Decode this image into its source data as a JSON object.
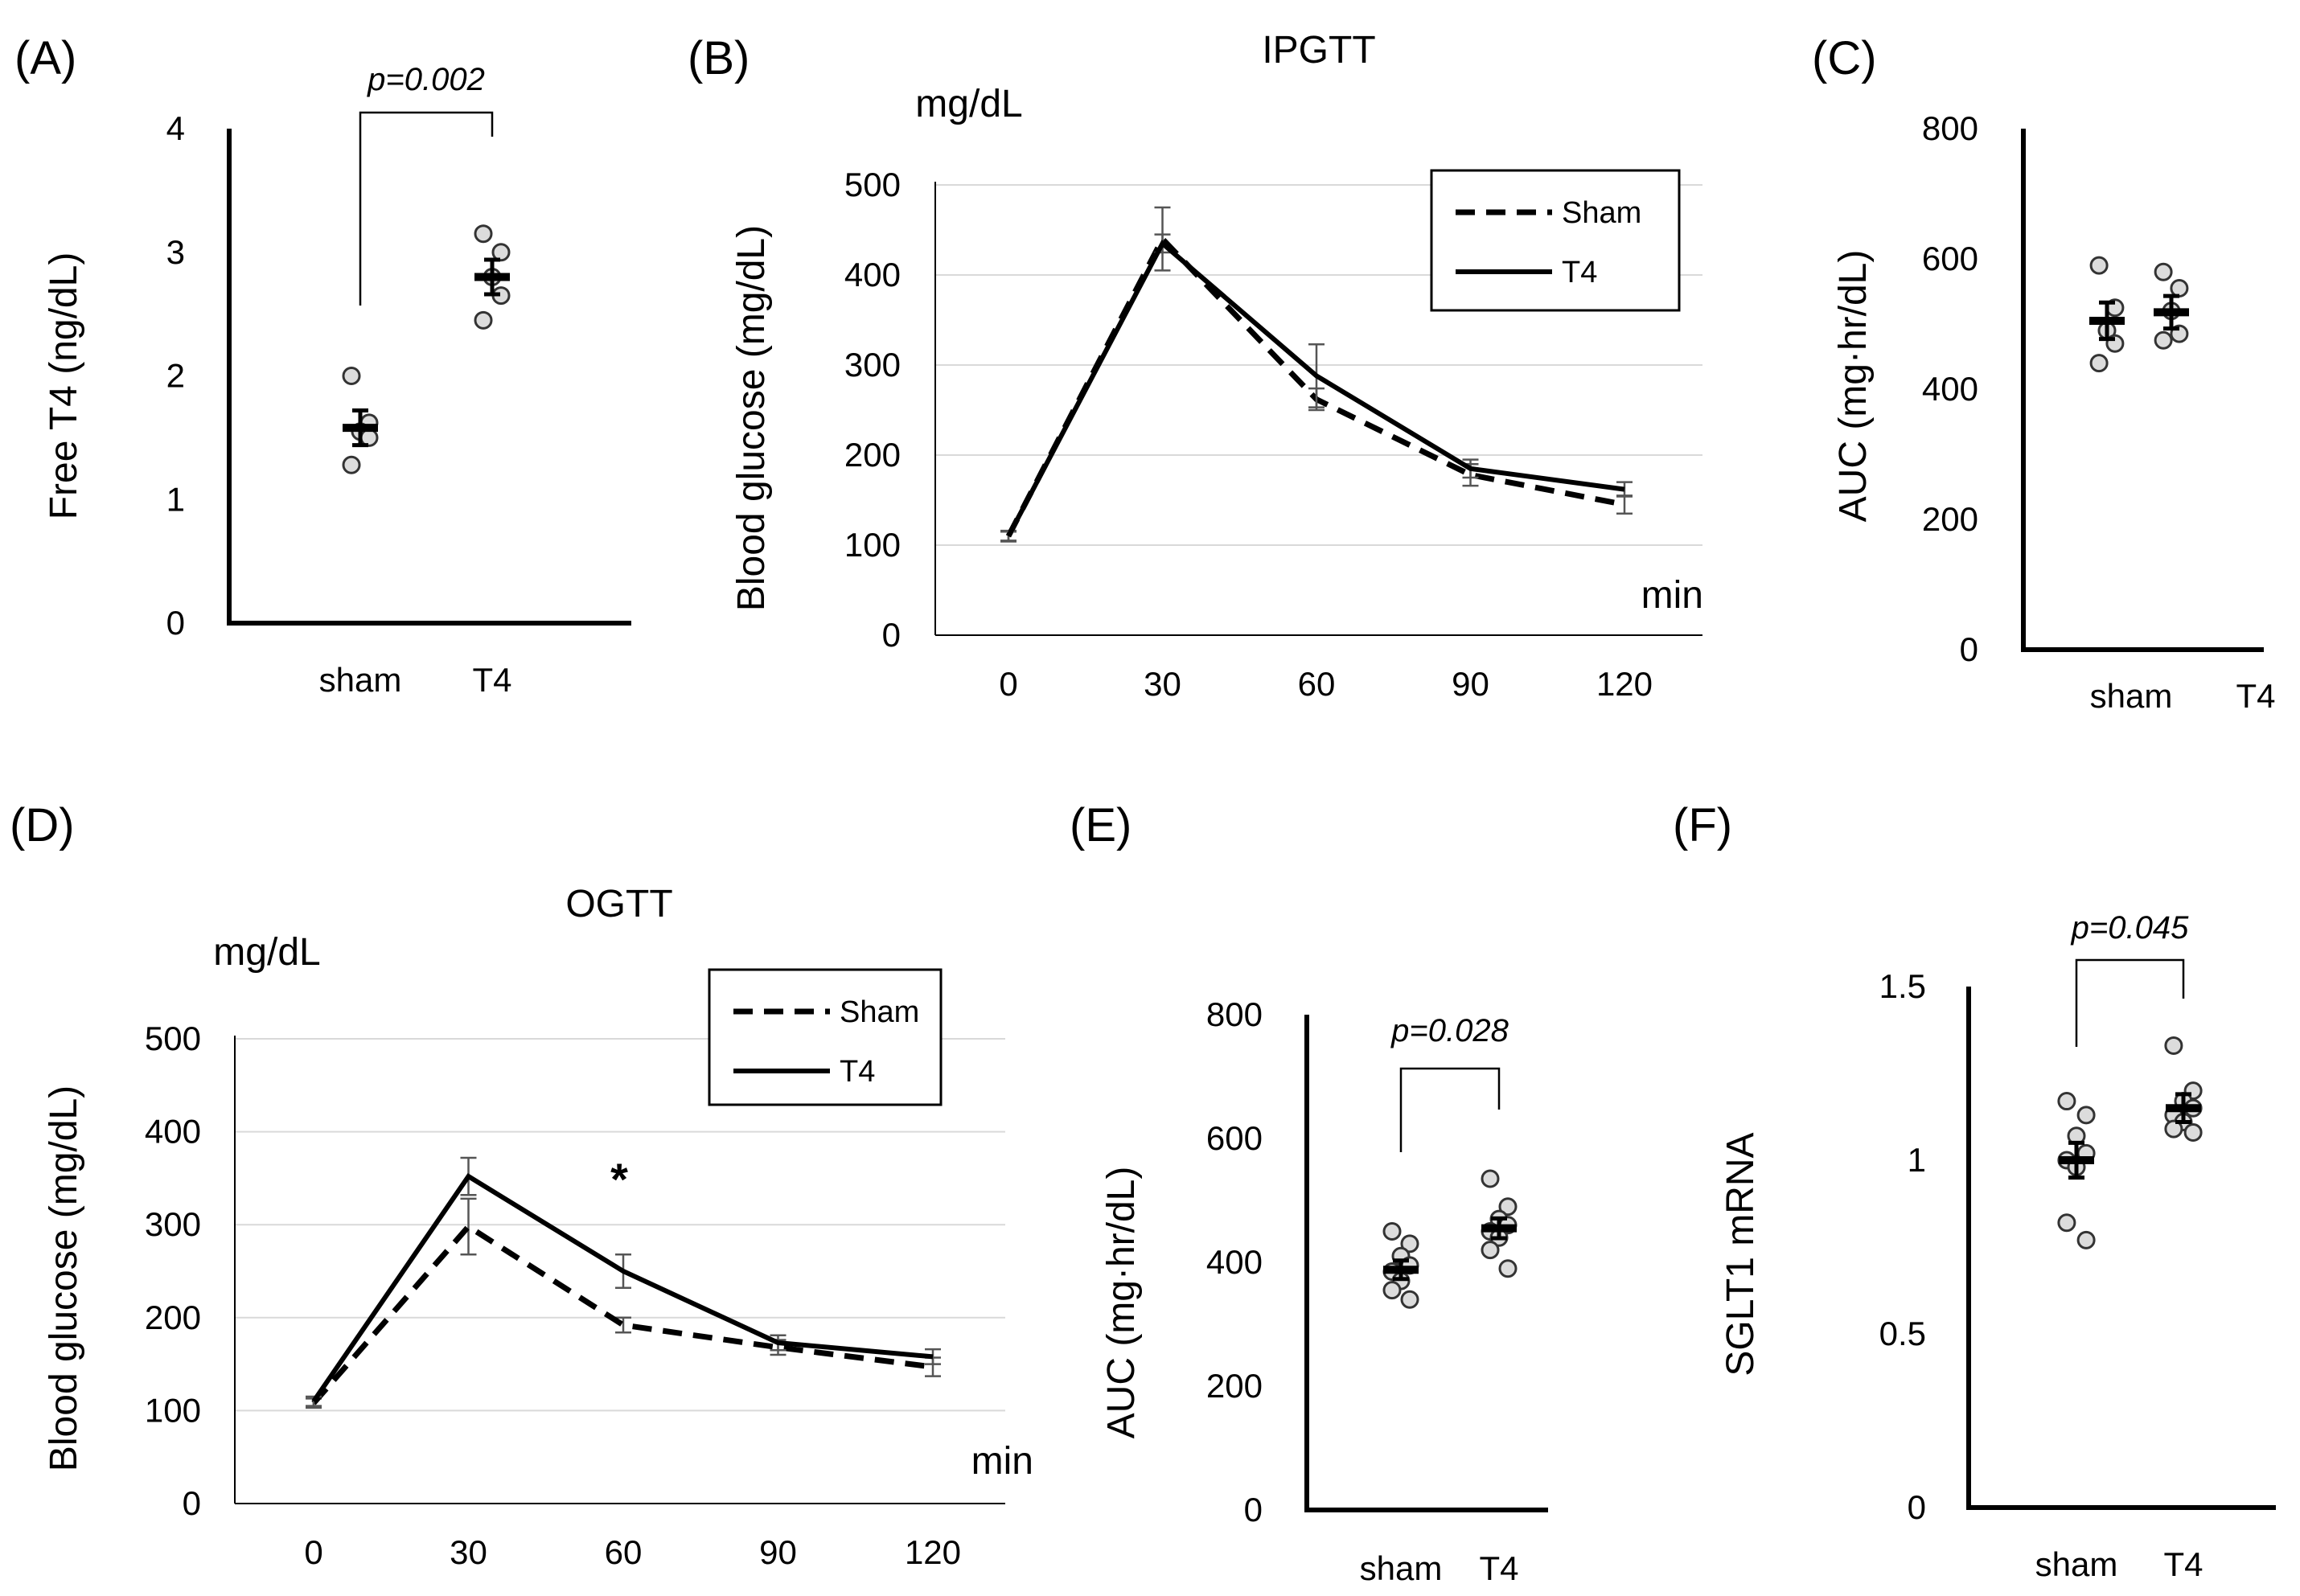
{
  "chart_data": [
    {
      "id": "A",
      "type": "scatter",
      "panel_label": "(A)",
      "title": "",
      "xlabel": "",
      "ylabel": "Free T4 (ng/dL)",
      "categories": [
        "sham",
        "T4"
      ],
      "ylim": [
        0,
        4
      ],
      "yticks": [
        "0",
        "1",
        "2",
        "3",
        "4"
      ],
      "series": [
        {
          "name": "sham",
          "points": [
            2.0,
            1.62,
            1.55,
            1.5,
            1.28
          ],
          "mean": 1.58,
          "sem": 0.14
        },
        {
          "name": "T4",
          "points": [
            3.15,
            3.0,
            2.8,
            2.65,
            2.45
          ],
          "mean": 2.8,
          "sem": 0.14
        }
      ],
      "annotation": "p=0.002"
    },
    {
      "id": "B",
      "type": "line",
      "panel_label": "(B)",
      "title": "IPGTT",
      "unit_label": "mg/dL",
      "xlabel": "min",
      "ylabel": "Blood glucose (mg/dL)",
      "x": [
        0,
        30,
        60,
        90,
        120
      ],
      "xticks": [
        "0",
        "30",
        "60",
        "90",
        "120"
      ],
      "ylim": [
        0,
        500
      ],
      "yticks": [
        "0",
        "100",
        "200",
        "300",
        "400",
        "500"
      ],
      "grid": true,
      "legend": [
        "Sham",
        "T4"
      ],
      "series": [
        {
          "name": "Sham",
          "values": [
            110,
            440,
            262,
            178,
            145
          ],
          "err": [
            6,
            35,
            12,
            12,
            10
          ]
        },
        {
          "name": "T4",
          "values": [
            110,
            435,
            288,
            185,
            162
          ],
          "err": [
            5,
            10,
            35,
            10,
            8
          ]
        }
      ]
    },
    {
      "id": "C",
      "type": "scatter",
      "panel_label": "(C)",
      "title": "",
      "xlabel": "",
      "ylabel": "AUC (mg·hr/dL)",
      "categories": [
        "sham",
        "T4"
      ],
      "ylim": [
        0,
        800
      ],
      "yticks": [
        "0",
        "200",
        "400",
        "600",
        "800"
      ],
      "series": [
        {
          "name": "sham",
          "points": [
            590,
            525,
            490,
            470,
            440
          ],
          "mean": 505,
          "sem": 28
        },
        {
          "name": "T4",
          "points": [
            580,
            555,
            520,
            485,
            475
          ],
          "mean": 518,
          "sem": 25
        }
      ],
      "annotation": ""
    },
    {
      "id": "D",
      "type": "line",
      "panel_label": "(D)",
      "title": "OGTT",
      "unit_label": "mg/dL",
      "xlabel": "min",
      "ylabel": "Blood glucose (mg/dL)",
      "x": [
        0,
        30,
        60,
        90,
        120
      ],
      "xticks": [
        "0",
        "30",
        "60",
        "90",
        "120"
      ],
      "ylim": [
        0,
        500
      ],
      "yticks": [
        "0",
        "100",
        "200",
        "300",
        "400",
        "500"
      ],
      "grid": true,
      "legend": [
        "Sham",
        "T4"
      ],
      "series": [
        {
          "name": "Sham",
          "values": [
            108,
            298,
            192,
            168,
            147
          ],
          "err": [
            5,
            30,
            8,
            8,
            10
          ]
        },
        {
          "name": "T4",
          "values": [
            110,
            352,
            250,
            173,
            158
          ],
          "err": [
            5,
            20,
            18,
            8,
            8
          ]
        }
      ],
      "annotation": "*"
    },
    {
      "id": "E",
      "type": "scatter",
      "panel_label": "(E)",
      "title": "",
      "xlabel": "",
      "ylabel": "AUC (mg·hr/dL)",
      "categories": [
        "sham",
        "T4"
      ],
      "ylim": [
        0,
        800
      ],
      "yticks": [
        "0",
        "200",
        "400",
        "600",
        "800"
      ],
      "series": [
        {
          "name": "sham",
          "points": [
            450,
            430,
            410,
            395,
            385,
            370,
            355,
            340
          ],
          "mean": 388,
          "sem": 15
        },
        {
          "name": "T4",
          "points": [
            535,
            490,
            470,
            460,
            450,
            440,
            420,
            390
          ],
          "mean": 455,
          "sem": 16
        }
      ],
      "annotation": "p=0.028"
    },
    {
      "id": "F",
      "type": "scatter",
      "panel_label": "(F)",
      "title": "",
      "xlabel": "",
      "ylabel": "SGLT1 mRNA",
      "categories": [
        "sham",
        "T4"
      ],
      "ylim": [
        0,
        1.5
      ],
      "yticks": [
        "0",
        "0.5",
        "1",
        "1.5"
      ],
      "series": [
        {
          "name": "sham",
          "points": [
            1.17,
            1.13,
            1.07,
            1.02,
            1.0,
            0.98,
            0.82,
            0.77
          ],
          "mean": 1.0,
          "sem": 0.05
        },
        {
          "name": "T4",
          "points": [
            1.33,
            1.2,
            1.17,
            1.15,
            1.13,
            1.11,
            1.09,
            1.08
          ],
          "mean": 1.15,
          "sem": 0.04
        }
      ],
      "annotation": "p=0.045"
    }
  ]
}
